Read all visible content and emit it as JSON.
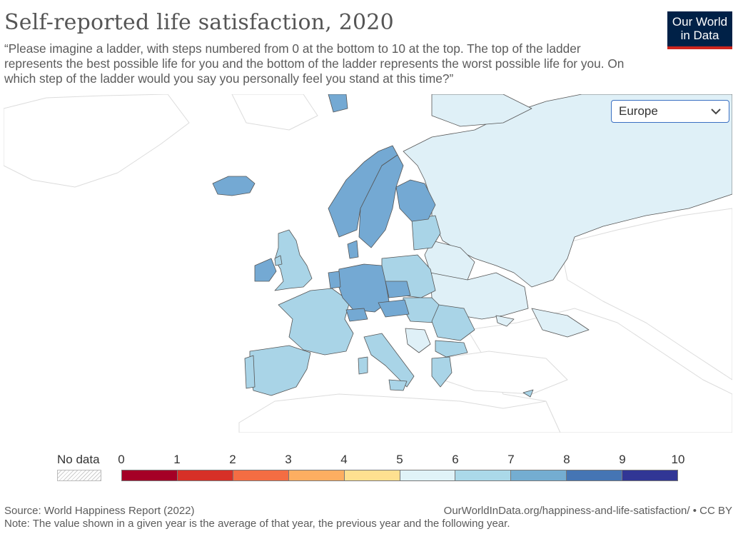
{
  "header": {
    "title": "Self-reported life satisfaction, 2020",
    "subtitle": "“Please imagine a ladder, with steps numbered from 0 at the bottom to 10 at the top. The top of the ladder represents the best possible life for you and the bottom of the ladder represents the worst possible life for you. On which step of the ladder would you say you personally feel you stand at this time?”",
    "logo_line1": "Our World",
    "logo_line2": "in Data"
  },
  "region_selector": {
    "selected": "Europe",
    "icon": "chevron-down-icon"
  },
  "legend": {
    "no_data_label": "No data",
    "ticks": [
      "0",
      "1",
      "2",
      "3",
      "4",
      "5",
      "6",
      "7",
      "8",
      "9",
      "10"
    ],
    "bin_colors": [
      "#a50026",
      "#d73027",
      "#f46d43",
      "#fdae61",
      "#fee090",
      "#e0f3f8",
      "#abd9e9",
      "#74add1",
      "#4575b4",
      "#313695"
    ]
  },
  "map_colors": {
    "no_data": "#ffffff",
    "bin_5_6": "#dff0f7",
    "bin_6_7": "#a9d4e7",
    "bin_7_8": "#74a9d3",
    "bin_7_8_dark": "#6a9fcf",
    "border": "#555555",
    "nodata_border": "#dddddd"
  },
  "footer": {
    "source": "Source: World Happiness Report (2022)",
    "note": "Note: The value shown in a given year is the average of that year, the previous year and the following year.",
    "url": "OurWorldInData.org/happiness-and-life-satisfaction/ • CC BY"
  }
}
